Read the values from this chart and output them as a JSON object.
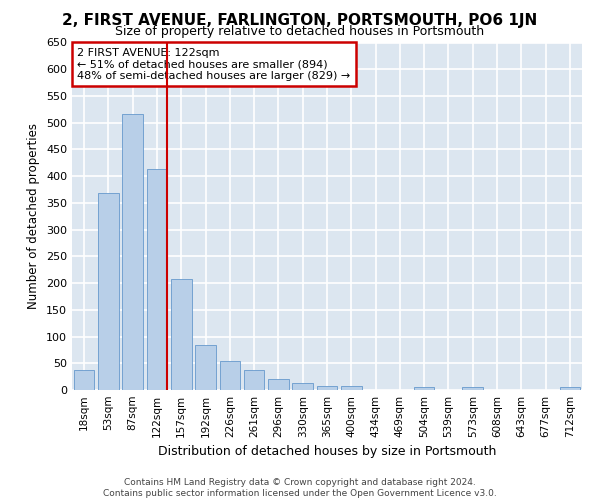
{
  "title": "2, FIRST AVENUE, FARLINGTON, PORTSMOUTH, PO6 1JN",
  "subtitle": "Size of property relative to detached houses in Portsmouth",
  "xlabel": "Distribution of detached houses by size in Portsmouth",
  "ylabel": "Number of detached properties",
  "categories": [
    "18sqm",
    "53sqm",
    "87sqm",
    "122sqm",
    "157sqm",
    "192sqm",
    "226sqm",
    "261sqm",
    "296sqm",
    "330sqm",
    "365sqm",
    "400sqm",
    "434sqm",
    "469sqm",
    "504sqm",
    "539sqm",
    "573sqm",
    "608sqm",
    "643sqm",
    "677sqm",
    "712sqm"
  ],
  "values": [
    38,
    368,
    517,
    413,
    207,
    85,
    55,
    37,
    20,
    13,
    8,
    8,
    0,
    0,
    5,
    0,
    5,
    0,
    0,
    0,
    5
  ],
  "bar_color": "#b8cfe8",
  "bar_edge_color": "#6699cc",
  "red_line_index": 3,
  "annotation_text": "2 FIRST AVENUE: 122sqm\n← 51% of detached houses are smaller (894)\n48% of semi-detached houses are larger (829) →",
  "annotation_box_facecolor": "#ffffff",
  "annotation_box_edgecolor": "#cc0000",
  "ylim": [
    0,
    650
  ],
  "yticks": [
    0,
    50,
    100,
    150,
    200,
    250,
    300,
    350,
    400,
    450,
    500,
    550,
    600,
    650
  ],
  "fig_facecolor": "#ffffff",
  "axes_facecolor": "#dce6f0",
  "grid_color": "#ffffff",
  "footer_line1": "Contains HM Land Registry data © Crown copyright and database right 2024.",
  "footer_line2": "Contains public sector information licensed under the Open Government Licence v3.0."
}
